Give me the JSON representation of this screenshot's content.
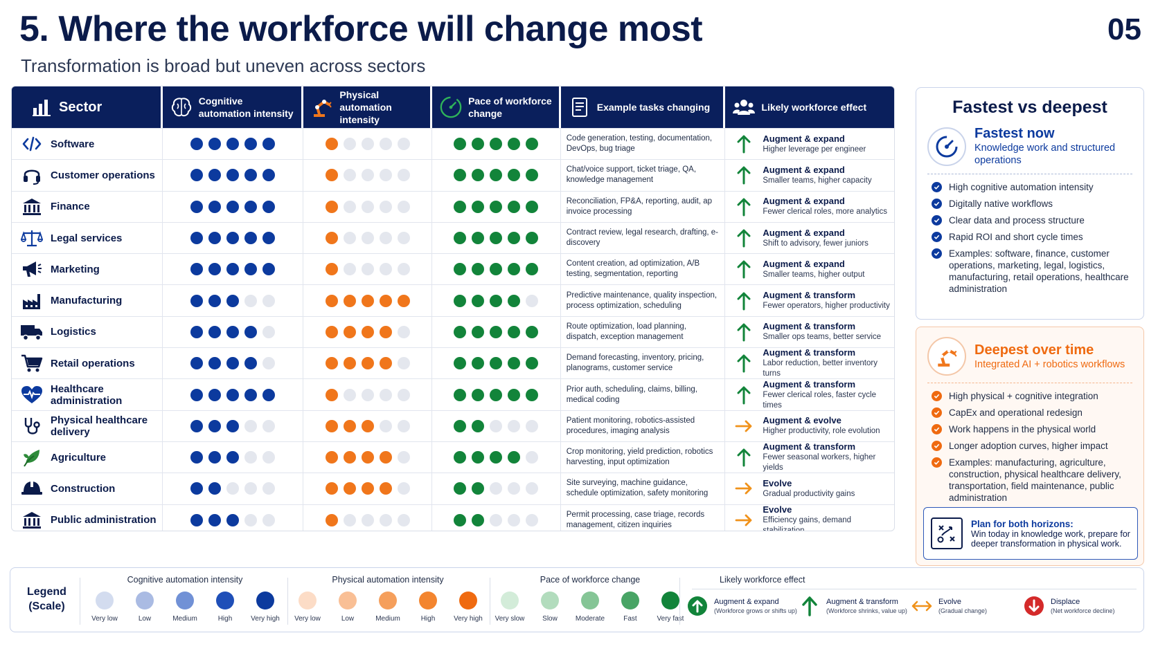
{
  "title": "5. Where the workforce will change most",
  "page_number": "05",
  "subtitle": "Transformation is broad but uneven across sectors",
  "colors": {
    "navy": "#0a1f5c",
    "blue": "#0c3a9e",
    "orange": "#f0761b",
    "green": "#12843a",
    "off": "#e4e7ee"
  },
  "headers": {
    "sector": "Sector",
    "cognitive": "Cognitive automation intensity",
    "physical": "Physical automation intensity",
    "pace": "Pace of workforce change",
    "tasks": "Example tasks changing",
    "effect": "Likely workforce effect"
  },
  "rows": [
    {
      "sector": "Software",
      "icon": "code-icon",
      "cog": 5,
      "phy": 1,
      "pace": 5,
      "tasks": "Code generation, testing, documentation, DevOps, bug triage",
      "effect_type": "up",
      "effect": "Augment & expand",
      "effect_sub": "Higher leverage per engineer"
    },
    {
      "sector": "Customer operations",
      "icon": "headset-icon",
      "cog": 5,
      "phy": 1,
      "pace": 5,
      "tasks": "Chat/voice support, ticket triage, QA, knowledge management",
      "effect_type": "up",
      "effect": "Augment & expand",
      "effect_sub": "Smaller teams, higher capacity"
    },
    {
      "sector": "Finance",
      "icon": "bank-icon",
      "cog": 5,
      "phy": 1,
      "pace": 5,
      "tasks": "Reconciliation, FP&A, reporting, audit, ap invoice processing",
      "effect_type": "up",
      "effect": "Augment & expand",
      "effect_sub": "Fewer clerical roles, more analytics"
    },
    {
      "sector": "Legal services",
      "icon": "scales-icon",
      "cog": 5,
      "phy": 1,
      "pace": 5,
      "tasks": "Contract review, legal research, drafting, e-discovery",
      "effect_type": "up",
      "effect": "Augment & expand",
      "effect_sub": "Shift to advisory, fewer juniors"
    },
    {
      "sector": "Marketing",
      "icon": "megaphone-icon",
      "cog": 5,
      "phy": 1,
      "pace": 5,
      "tasks": "Content creation, ad optimization, A/B testing, segmentation, reporting",
      "effect_type": "up",
      "effect": "Augment & expand",
      "effect_sub": "Smaller teams, higher output"
    },
    {
      "sector": "Manufacturing",
      "icon": "factory-icon",
      "cog": 3,
      "phy": 5,
      "pace": 4,
      "tasks": "Predictive maintenance, quality inspection, process optimization, scheduling",
      "effect_type": "up",
      "effect": "Augment & transform",
      "effect_sub": "Fewer operators, higher productivity"
    },
    {
      "sector": "Logistics",
      "icon": "truck-icon",
      "cog": 4,
      "phy": 4,
      "pace": 5,
      "tasks": "Route optimization, load planning, dispatch, exception management",
      "effect_type": "up",
      "effect": "Augment & transform",
      "effect_sub": "Smaller ops teams, better service"
    },
    {
      "sector": "Retail operations",
      "icon": "cart-icon",
      "cog": 4,
      "phy": 4,
      "pace": 5,
      "tasks": "Demand forecasting, inventory, pricing, planograms, customer service",
      "effect_type": "up",
      "effect": "Augment & transform",
      "effect_sub": "Labor reduction, better inventory turns"
    },
    {
      "sector": "Healthcare administration",
      "icon": "heart-pulse-icon",
      "cog": 5,
      "phy": 1,
      "pace": 5,
      "tasks": "Prior auth, scheduling, claims, billing, medical coding",
      "effect_type": "up",
      "effect": "Augment & transform",
      "effect_sub": "Fewer clerical roles, faster cycle times"
    },
    {
      "sector": "Physical healthcare delivery",
      "icon": "stethoscope-icon",
      "cog": 3,
      "phy": 3,
      "pace": 2,
      "tasks": "Patient monitoring, robotics-assisted procedures, imaging analysis",
      "effect_type": "right",
      "effect": "Augment & evolve",
      "effect_sub": "Higher productivity, role evolution"
    },
    {
      "sector": "Agriculture",
      "icon": "leaf-icon",
      "cog": 3,
      "phy": 4,
      "pace": 4,
      "tasks": "Crop monitoring, yield prediction, robotics harvesting, input optimization",
      "effect_type": "up",
      "effect": "Augment & transform",
      "effect_sub": "Fewer seasonal workers, higher yields"
    },
    {
      "sector": "Construction",
      "icon": "hardhat-icon",
      "cog": 2,
      "phy": 4,
      "pace": 2,
      "tasks": "Site surveying, machine guidance, schedule optimization, safety monitoring",
      "effect_type": "right",
      "effect": "Evolve",
      "effect_sub": "Gradual productivity gains"
    },
    {
      "sector": "Public administration",
      "icon": "government-icon",
      "cog": 3,
      "phy": 1,
      "pace": 2,
      "tasks": "Permit processing, case triage, records management, citizen inquiries",
      "effect_type": "right",
      "effect": "Evolve",
      "effect_sub": "Efficiency gains, demand stabilization"
    }
  ],
  "fastest": {
    "heading": "Fastest vs deepest",
    "title": "Fastest now",
    "sub": "Knowledge work and structured operations",
    "bullets": [
      "High cognitive automation intensity",
      "Digitally native workflows",
      "Clear data and process structure",
      "Rapid ROI and short cycle times",
      "Examples: software, finance, customer operations, marketing, legal, logistics, manufacturing, retail operations, healthcare administration"
    ]
  },
  "deepest": {
    "title": "Deepest over time",
    "sub": "Integrated AI + robotics workflows",
    "bullets": [
      "High physical + cognitive integration",
      "CapEx and operational redesign",
      "Work happens in the physical world",
      "Longer adoption curves, higher impact",
      "Examples: manufacturing, agriculture, construction, physical healthcare delivery, transportation, field maintenance, public administration"
    ],
    "plan_title": "Plan for both horizons:",
    "plan_text": "Win today in knowledge work, prepare for deeper transformation in physical work."
  },
  "legend": {
    "title_line1": "Legend",
    "title_line2": "(Scale)",
    "cog_title": "Cognitive automation intensity",
    "phy_title": "Physical automation intensity",
    "pace_title": "Pace of workforce change",
    "effect_title": "Likely workforce effect",
    "intensity_labels": [
      "Very low",
      "Low",
      "Medium",
      "High",
      "Very high"
    ],
    "pace_labels": [
      "Very slow",
      "Slow",
      "Moderate",
      "Fast",
      "Very fast"
    ],
    "blue_scale": [
      "#d3dcef",
      "#aabbe3",
      "#7191d6",
      "#1f4fb8",
      "#0c3a9e"
    ],
    "orange_scale": [
      "#fcdcc6",
      "#f9bf95",
      "#f59f5c",
      "#f3852f",
      "#ef6a10"
    ],
    "green_scale": [
      "#d3ecd9",
      "#b2dcbd",
      "#85c596",
      "#48a465",
      "#12843a"
    ],
    "effects": [
      {
        "title": "Augment & expand",
        "sub": "(Workforce grows or shifts up)"
      },
      {
        "title": "Augment & transform",
        "sub": "(Workforce shrinks, value up)"
      },
      {
        "title": "Evolve",
        "sub": "(Gradual change)"
      },
      {
        "title": "Displace",
        "sub": "(Net workforce decline)"
      }
    ]
  }
}
